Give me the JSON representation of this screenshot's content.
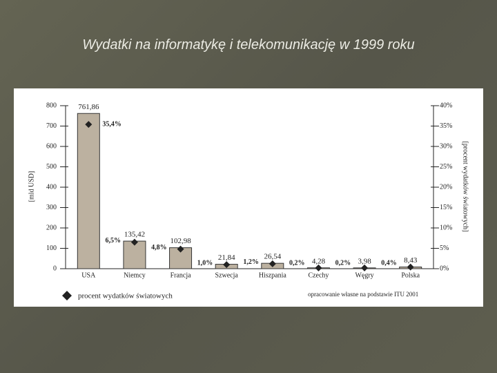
{
  "chart_data": {
    "type": "bar",
    "title": "Wydatki na informatykę i telekomunikację w 1999 roku",
    "categories": [
      "USA",
      "Niemcy",
      "Francja",
      "Szwecja",
      "Hiszpania",
      "Czechy",
      "Węgry",
      "Polska"
    ],
    "values": [
      761.86,
      135.42,
      102.98,
      21.84,
      26.54,
      4.28,
      3.98,
      8.43
    ],
    "value_labels": [
      "761,86",
      "135,42",
      "102,98",
      "21,84",
      "26,54",
      "4,28",
      "3,98",
      "8,43"
    ],
    "color": "#bcb1a0",
    "ylim": [
      0,
      800
    ],
    "yticks": [
      0,
      100,
      200,
      300,
      400,
      500,
      600,
      700,
      800
    ],
    "y_label": "[mld USD]",
    "y2lim": [
      0,
      40
    ],
    "y2ticks": [
      {
        "value": 0,
        "label": "0%"
      },
      {
        "value": 5,
        "label": "5%"
      },
      {
        "value": 10,
        "label": "10%"
      },
      {
        "value": 15,
        "label": "15%"
      },
      {
        "value": 20,
        "label": "20%"
      },
      {
        "value": 25,
        "label": "25%"
      },
      {
        "value": 30,
        "label": "30%"
      },
      {
        "value": 35,
        "label": "35%"
      },
      {
        "value": 40,
        "label": "40%"
      }
    ],
    "y2_label": "[procent wydatków światowych]",
    "series": [
      {
        "name": "procent wydatków światowych",
        "color": "#222222",
        "axis": "y2",
        "values": [
          35.4,
          6.5,
          4.8,
          1.0,
          1.2,
          0.2,
          0.2,
          0.4
        ],
        "value_labels": [
          "35,4%",
          "6,5%",
          "4,8%",
          "1,0%",
          "1,2%",
          "0,2%",
          "0,2%",
          "0,4%"
        ]
      }
    ],
    "note": "opracowanie własne na podstawie ITU 2001"
  }
}
